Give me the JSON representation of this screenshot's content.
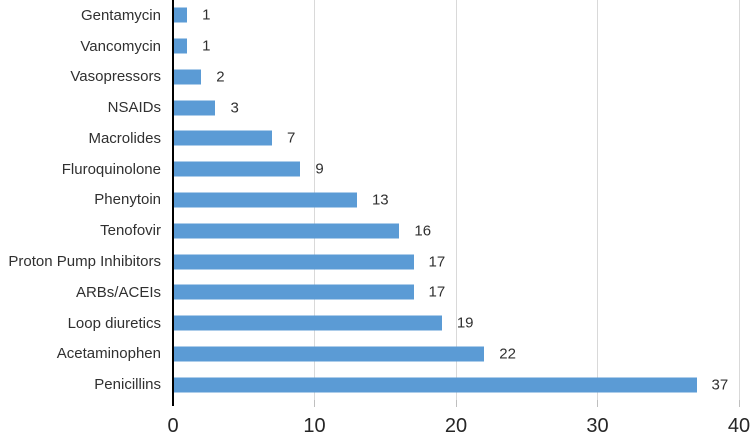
{
  "chart_data": {
    "type": "bar",
    "orientation": "horizontal",
    "title": "",
    "xlabel": "",
    "ylabel": "",
    "categories": [
      "Gentamycin",
      "Vancomycin",
      "Vasopressors",
      "NSAIDs",
      "Macrolides",
      "Fluroquinolone",
      "Phenytoin",
      "Tenofovir",
      "Proton Pump Inhibitors",
      "ARBs/ACEIs",
      "Loop diuretics",
      "Acetaminophen",
      "Penicillins"
    ],
    "values": [
      1,
      1,
      2,
      3,
      7,
      9,
      13,
      16,
      17,
      17,
      19,
      22,
      37
    ],
    "data_labels": [
      "1",
      "1",
      "2",
      "3",
      "7",
      "9",
      "13",
      "16",
      "17",
      "17",
      "19",
      "22",
      "37"
    ],
    "x_ticks": [
      0,
      10,
      20,
      30,
      40
    ],
    "x_tick_labels": [
      "0",
      "10",
      "20",
      "30",
      "40"
    ],
    "xlim": [
      0,
      40
    ],
    "grid": "vertical",
    "legend": "none",
    "colors": {
      "bar": "#5b9bd5",
      "gridline": "#d9d9d9",
      "axis_line": "#000000",
      "tick": "#bfbfbf",
      "label_text": "#303030",
      "axis_text": "#262626",
      "background": "#ffffff"
    }
  }
}
